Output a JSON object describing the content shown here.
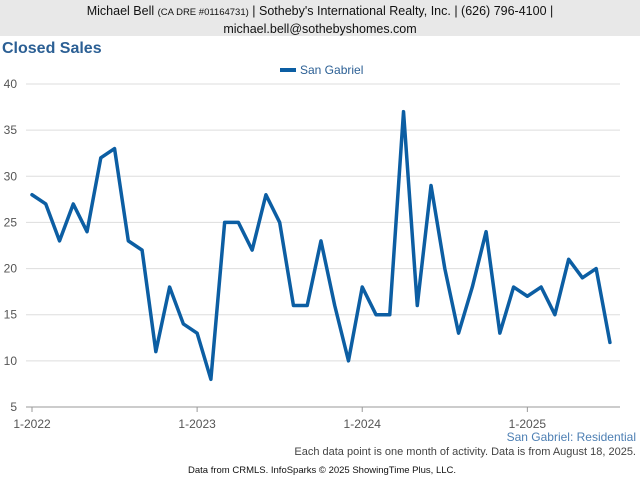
{
  "header": {
    "name": "Michael Bell",
    "license": "(CA DRE #01164731)",
    "company_phone": "| Sotheby's International Realty, Inc. | (626) 796-4100 |",
    "email": "michael.bell@sothebyshomes.com"
  },
  "footer": {
    "region_label": "San Gabriel: Residential",
    "note": "Each data point is one month of activity. Data is from August 18, 2025.",
    "source": "Data from CRMLS. InfoSparks © 2025 ShowingTime Plus, LLC."
  },
  "chart_data": {
    "type": "line",
    "title": "Closed Sales",
    "xlabel": "",
    "ylabel": "",
    "ylim": [
      5,
      40
    ],
    "yticks": [
      5,
      10,
      15,
      20,
      25,
      30,
      35,
      40
    ],
    "x_tick_labels": [
      "1-2022",
      "1-2023",
      "1-2024",
      "1-2025"
    ],
    "grid": true,
    "legend": "top-center",
    "color": "#0c5ea3",
    "x": [
      "2022-01",
      "2022-02",
      "2022-03",
      "2022-04",
      "2022-05",
      "2022-06",
      "2022-07",
      "2022-08",
      "2022-09",
      "2022-10",
      "2022-11",
      "2022-12",
      "2023-01",
      "2023-02",
      "2023-03",
      "2023-04",
      "2023-05",
      "2023-06",
      "2023-07",
      "2023-08",
      "2023-09",
      "2023-10",
      "2023-11",
      "2023-12",
      "2024-01",
      "2024-02",
      "2024-03",
      "2024-04",
      "2024-05",
      "2024-06",
      "2024-07",
      "2024-08",
      "2024-09",
      "2024-10",
      "2024-11",
      "2024-12",
      "2025-01",
      "2025-02",
      "2025-03",
      "2025-04",
      "2025-05",
      "2025-06",
      "2025-07"
    ],
    "series": [
      {
        "name": "San Gabriel",
        "values": [
          28,
          27,
          23,
          27,
          24,
          32,
          33,
          23,
          22,
          11,
          18,
          14,
          13,
          8,
          25,
          25,
          22,
          28,
          25,
          16,
          16,
          23,
          16,
          10,
          18,
          15,
          15,
          37,
          16,
          29,
          20,
          13,
          18,
          24,
          13,
          18,
          17,
          18,
          15,
          21,
          19,
          20,
          12
        ]
      }
    ]
  }
}
